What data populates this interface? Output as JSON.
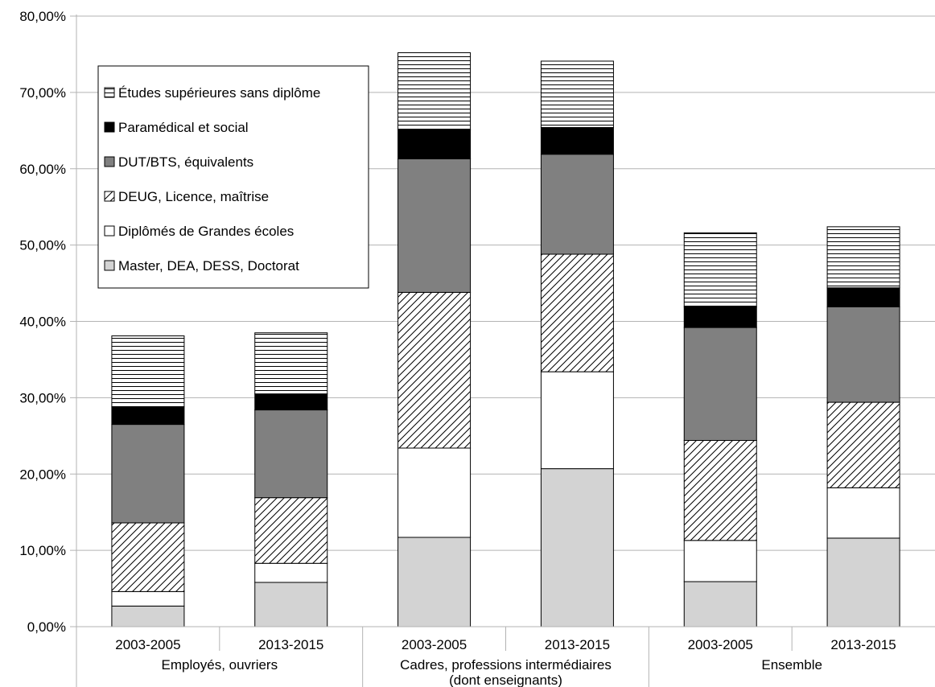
{
  "chart_data": {
    "type": "bar",
    "stacked": true,
    "grid": true,
    "legend_position": "top-left",
    "ylim": [
      0,
      0.8
    ],
    "yticks": [
      0,
      0.1,
      0.2,
      0.3,
      0.4,
      0.5,
      0.6,
      0.7,
      0.8
    ],
    "ytick_labels": [
      "0,00%",
      "10,00%",
      "20,00%",
      "30,00%",
      "40,00%",
      "50,00%",
      "60,00%",
      "70,00%",
      "80,00%"
    ],
    "groups": [
      {
        "label": "Employés, ouvriers",
        "label_lines": [
          "Employés, ouvriers"
        ]
      },
      {
        "label": "Cadres, professions intermédiaires (dont enseignants)",
        "label_lines": [
          "Cadres, professions intermédiaires",
          "(dont enseignants)"
        ]
      },
      {
        "label": "Ensemble",
        "label_lines": [
          "Ensemble"
        ]
      }
    ],
    "categories": [
      {
        "label": "2003-2005",
        "group": 0
      },
      {
        "label": "2013-2015",
        "group": 0
      },
      {
        "label": "2003-2005",
        "group": 1
      },
      {
        "label": "2013-2015",
        "group": 1
      },
      {
        "label": "2003-2005",
        "group": 2
      },
      {
        "label": "2013-2015",
        "group": 2
      }
    ],
    "series": [
      {
        "name": "Master, DEA, DESS, Doctorat",
        "fill": "#d3d3d3",
        "pattern": "solid",
        "values": [
          0.027,
          0.058,
          0.117,
          0.207,
          0.059,
          0.116
        ]
      },
      {
        "name": "Diplômés de Grandes écoles",
        "fill": "#ffffff",
        "pattern": "solid",
        "values": [
          0.019,
          0.025,
          0.117,
          0.127,
          0.054,
          0.066
        ]
      },
      {
        "name": "DEUG, Licence, maîtrise",
        "fill": "#ffffff",
        "pattern": "diagonal",
        "values": [
          0.09,
          0.086,
          0.204,
          0.154,
          0.131,
          0.112
        ]
      },
      {
        "name": "DUT/BTS, équivalents",
        "fill": "#808080",
        "pattern": "solid",
        "values": [
          0.129,
          0.115,
          0.175,
          0.131,
          0.148,
          0.125
        ]
      },
      {
        "name": "Paramédical et social",
        "fill": "#000000",
        "pattern": "solid",
        "values": [
          0.023,
          0.021,
          0.038,
          0.035,
          0.027,
          0.025
        ]
      },
      {
        "name": "Études supérieures sans diplôme",
        "fill": "#ffffff",
        "pattern": "horizontal",
        "values": [
          0.093,
          0.08,
          0.101,
          0.087,
          0.097,
          0.08
        ]
      }
    ]
  }
}
